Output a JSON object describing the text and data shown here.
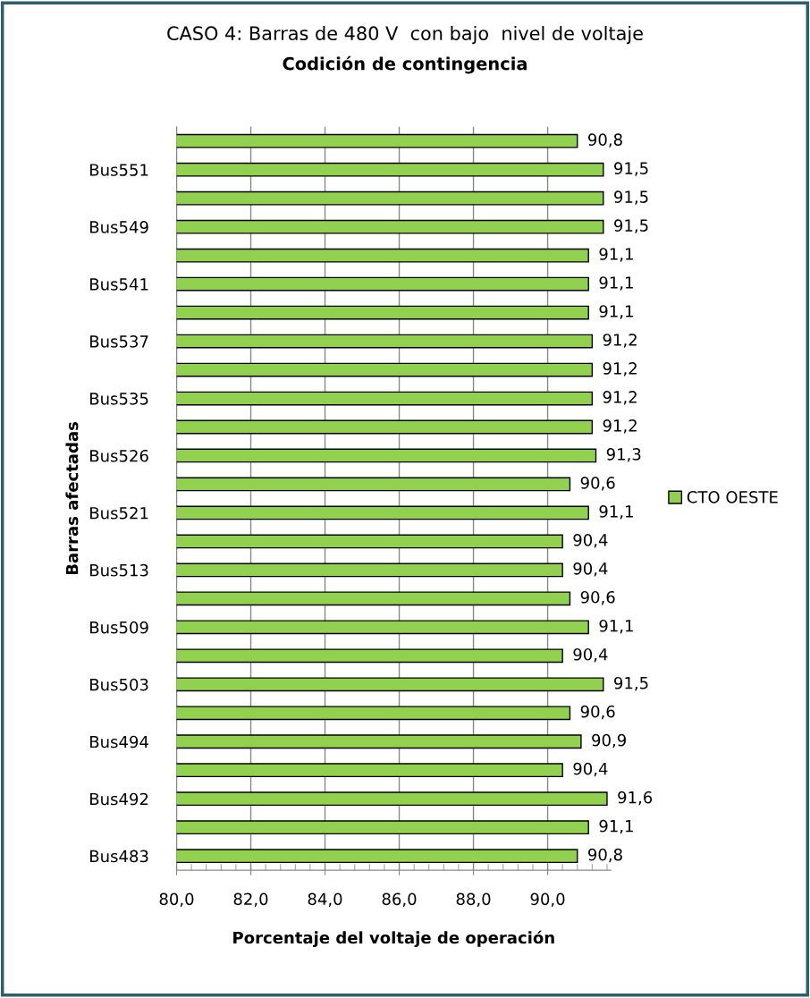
{
  "chart_data": {
    "type": "bar",
    "orientation": "horizontal",
    "title": "CASO 4: Barras de 480 V  con bajo  nivel de voltaje",
    "subtitle": "Codición de contingencia",
    "xlabel": "Porcentaje del voltaje de operación",
    "ylabel": "Barras afectadas",
    "categories": [
      null,
      "Bus551",
      null,
      "Bus549",
      null,
      "Bus541",
      null,
      "Bus537",
      null,
      "Bus535",
      null,
      "Bus526",
      null,
      "Bus521",
      null,
      "Bus513",
      null,
      "Bus509",
      null,
      "Bus503",
      null,
      "Bus494",
      null,
      "Bus492",
      null,
      "Bus483"
    ],
    "series": [
      {
        "name": "CTO OESTE",
        "color": "#92d050",
        "values": [
          90.8,
          91.5,
          91.5,
          91.5,
          91.1,
          91.1,
          91.1,
          91.2,
          91.2,
          91.2,
          91.2,
          91.3,
          90.6,
          91.1,
          90.4,
          90.4,
          90.6,
          91.1,
          90.4,
          91.5,
          90.6,
          90.9,
          90.4,
          91.6,
          91.1,
          90.8
        ],
        "value_labels": [
          "90,8",
          "91,5",
          "91,5",
          "91,5",
          "91,1",
          "91,1",
          "91,1",
          "91,2",
          "91,2",
          "91,2",
          "91,2",
          "91,3",
          "90,6",
          "91,1",
          "90,4",
          "90,4",
          "90,6",
          "91,1",
          "90,4",
          "91,5",
          "90,6",
          "90,9",
          "90,4",
          "91,6",
          "91,1",
          "90,8"
        ]
      }
    ],
    "xlim": [
      80,
      91.7
    ],
    "xticks": [
      {
        "value": 80,
        "label": "80,0"
      },
      {
        "value": 82,
        "label": "82,0"
      },
      {
        "value": 84,
        "label": "84,0"
      },
      {
        "value": 86,
        "label": "86,0"
      },
      {
        "value": 88,
        "label": "88,0"
      },
      {
        "value": 90,
        "label": "90,0"
      }
    ],
    "grid": "x",
    "legend": "right"
  }
}
